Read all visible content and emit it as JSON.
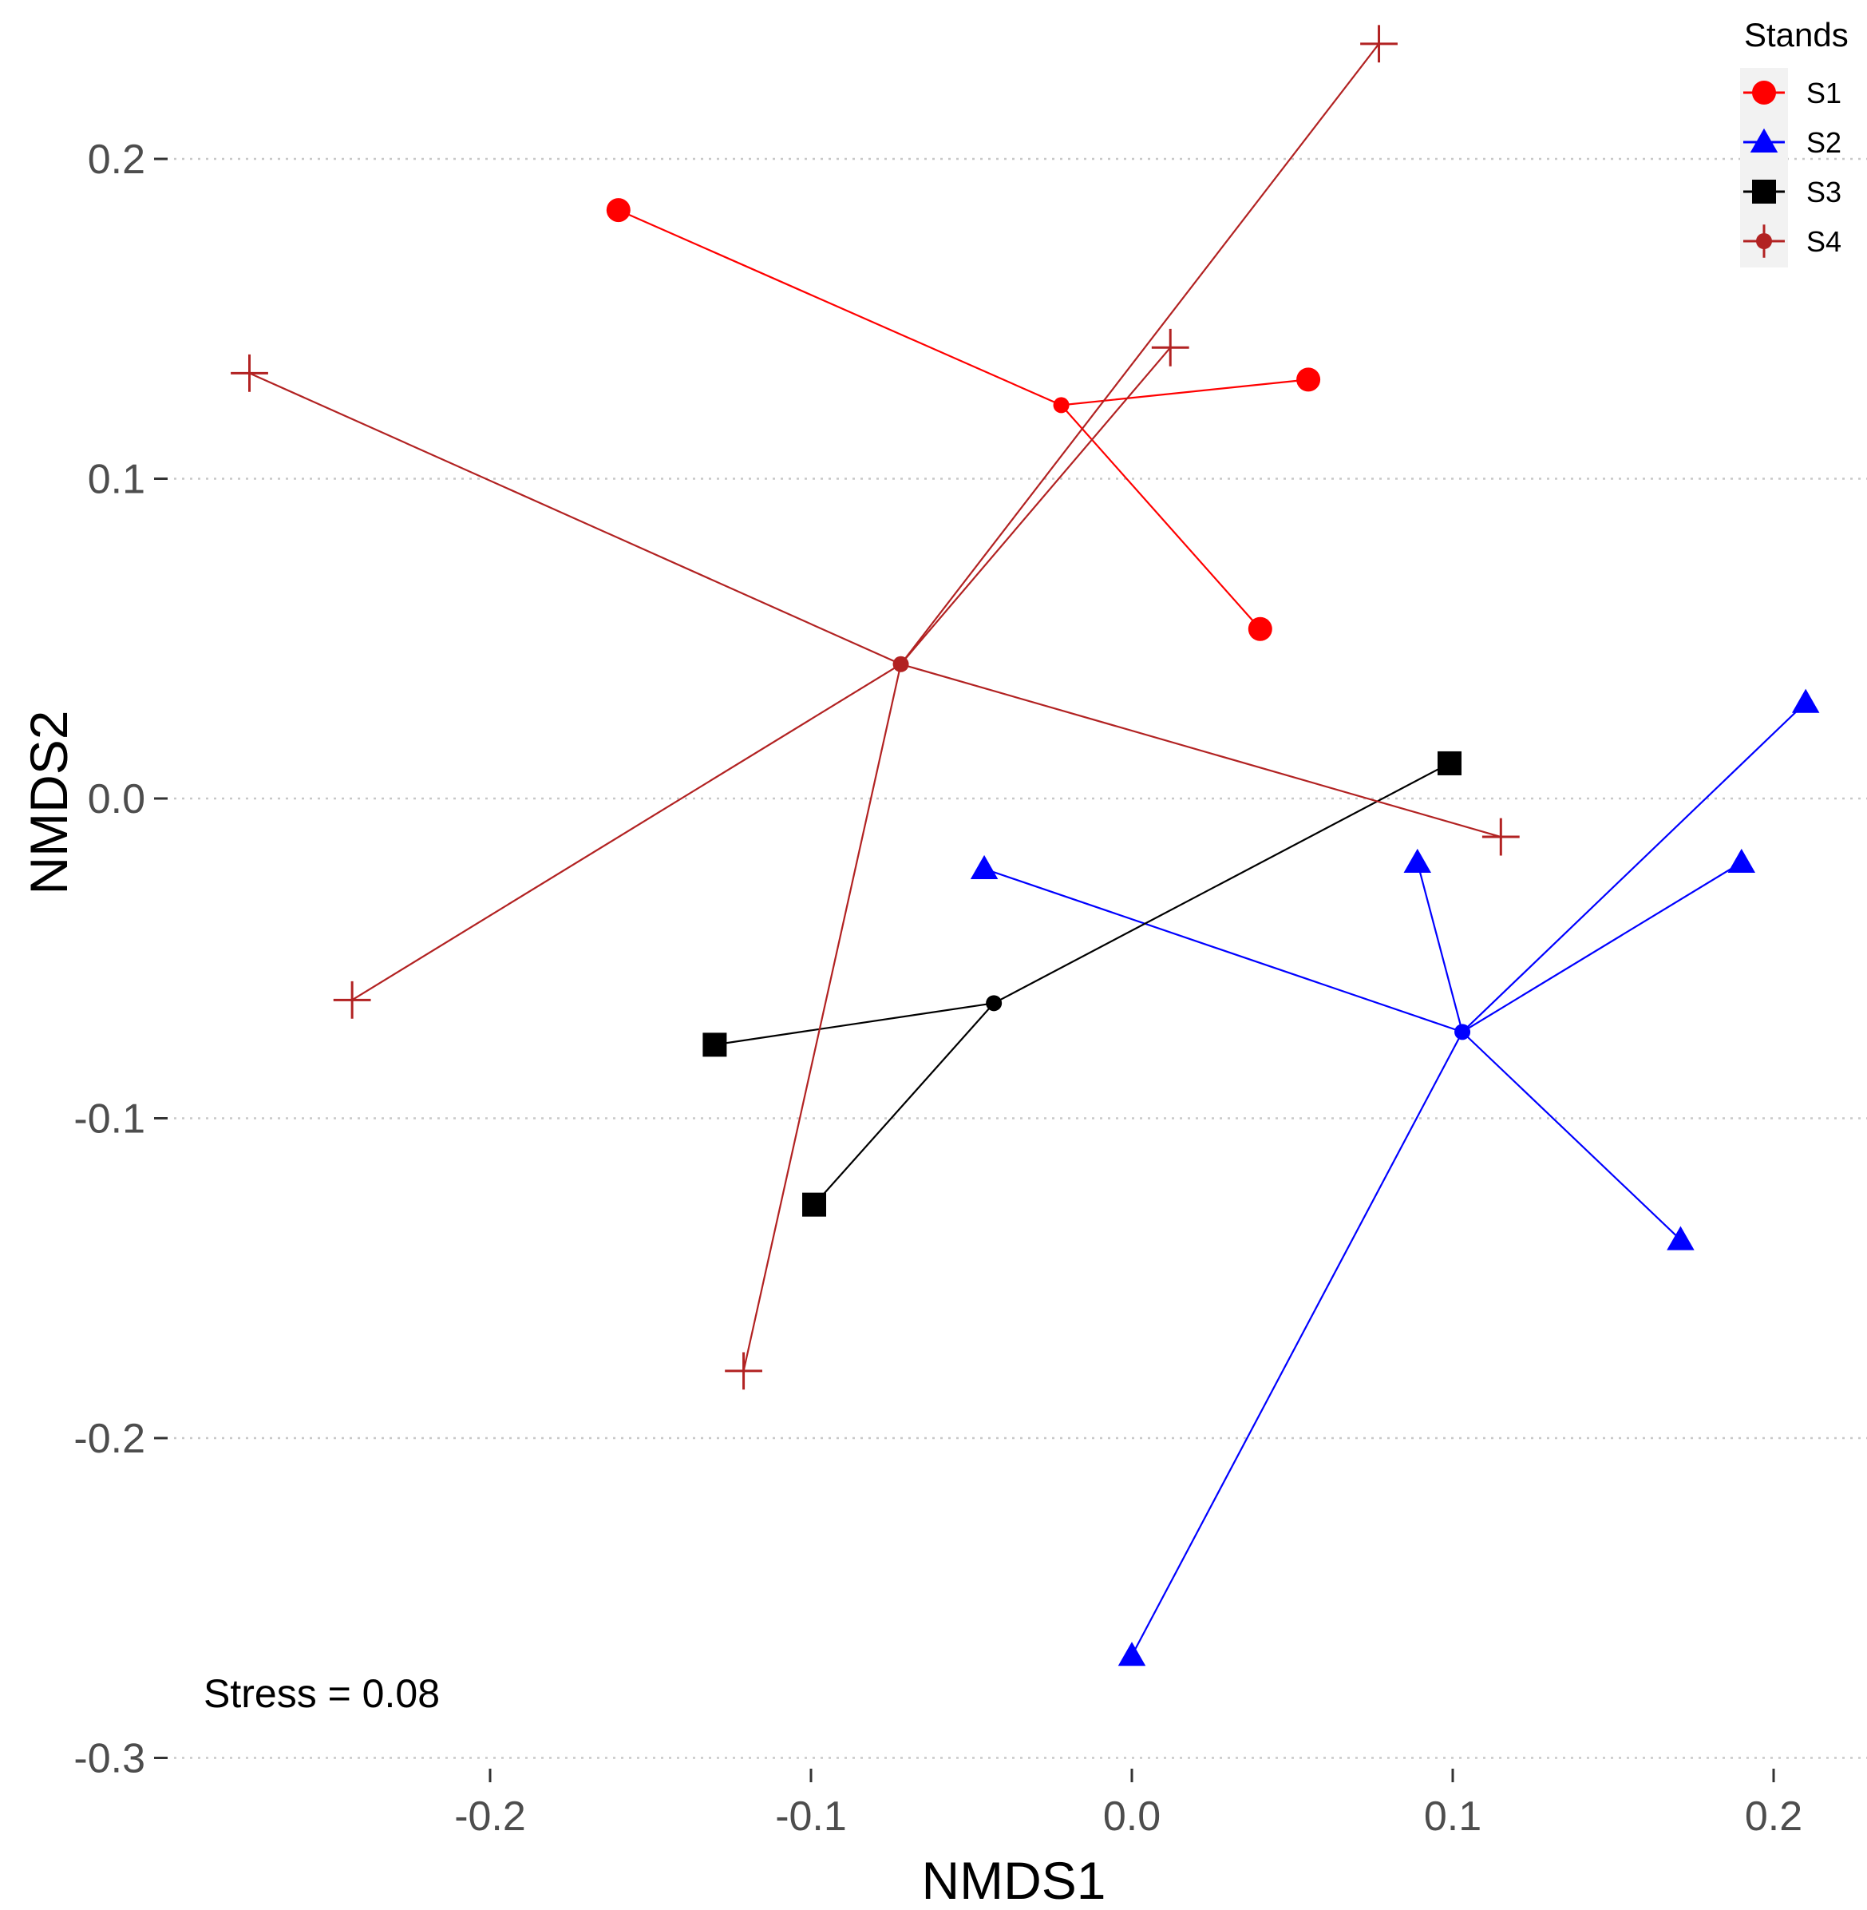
{
  "chart_data": {
    "type": "scatter",
    "title": "",
    "xlabel": "NMDS1",
    "ylabel": "NMDS2",
    "xlim": [
      -0.3,
      0.23
    ],
    "ylim": [
      -0.3,
      0.235
    ],
    "x_ticks": [
      -0.2,
      -0.1,
      0.0,
      0.1,
      0.2
    ],
    "y_ticks": [
      -0.3,
      -0.2,
      -0.1,
      0.0,
      0.1,
      0.2
    ],
    "x_tick_labels": [
      "-0.2",
      "-0.1",
      "0.0",
      "0.1",
      "0.2"
    ],
    "y_tick_labels": [
      "-0.3",
      "-0.2",
      "-0.1",
      "0.0",
      "0.1",
      "0.2"
    ],
    "grid": "horizontal-dotted",
    "annotation": "Stress = 0.08",
    "legend": {
      "title": "Stands",
      "position": "top-right",
      "entries": [
        "S1",
        "S2",
        "S3",
        "S4"
      ]
    },
    "series": [
      {
        "name": "S1",
        "color": "#ff0000",
        "shape": "circle",
        "centroid": [
          -0.022,
          0.123
        ],
        "points": [
          [
            -0.16,
            0.184
          ],
          [
            0.055,
            0.131
          ],
          [
            0.04,
            0.053
          ]
        ]
      },
      {
        "name": "S2",
        "color": "#0000ff",
        "shape": "triangle",
        "centroid": [
          0.103,
          -0.073
        ],
        "points": [
          [
            -0.046,
            -0.022
          ],
          [
            0.089,
            -0.02
          ],
          [
            0.21,
            0.03
          ],
          [
            0.19,
            -0.02
          ],
          [
            0.171,
            -0.138
          ],
          [
            0.0,
            -0.268
          ]
        ]
      },
      {
        "name": "S3",
        "color": "#000000",
        "shape": "square",
        "centroid": [
          -0.043,
          -0.064
        ],
        "points": [
          [
            -0.13,
            -0.077
          ],
          [
            -0.099,
            -0.127
          ],
          [
            0.099,
            0.011
          ]
        ]
      },
      {
        "name": "S4",
        "color": "#b22222",
        "shape": "cross",
        "centroid": [
          -0.072,
          0.042
        ],
        "points": [
          [
            -0.275,
            0.133
          ],
          [
            -0.243,
            -0.063
          ],
          [
            -0.121,
            -0.179
          ],
          [
            0.012,
            0.141
          ],
          [
            0.077,
            0.236
          ],
          [
            0.115,
            -0.012
          ]
        ]
      }
    ]
  }
}
